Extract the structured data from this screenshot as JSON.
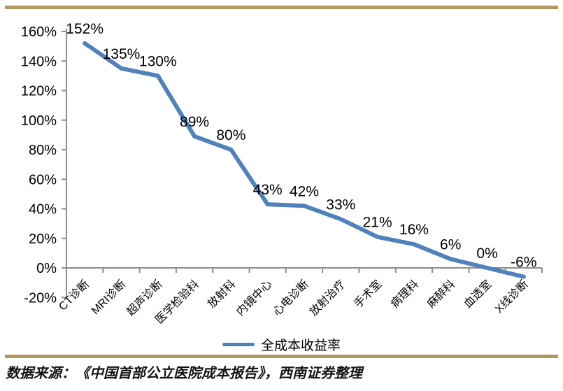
{
  "chart_data": {
    "type": "line",
    "title": "",
    "categories": [
      "CT诊断",
      "MRI诊断",
      "超声诊断",
      "医学检验科",
      "放射科",
      "内镜中心",
      "心电诊断",
      "放射治疗",
      "手术室",
      "病理科",
      "麻醉科",
      "血透室",
      "X线诊断"
    ],
    "series": [
      {
        "name": "全成本收益率",
        "values": [
          152,
          135,
          130,
          89,
          80,
          43,
          42,
          33,
          21,
          16,
          6,
          0,
          -6
        ]
      }
    ],
    "data_labels": [
      "152%",
      "135%",
      "130%",
      "89%",
      "80%",
      "43%",
      "42%",
      "33%",
      "21%",
      "16%",
      "6%",
      "0%",
      "-6%"
    ],
    "y_tick_labels": [
      "160%",
      "140%",
      "120%",
      "100%",
      "80%",
      "60%",
      "40%",
      "20%",
      "0%",
      "-20%"
    ],
    "ylim": [
      -20,
      160
    ],
    "ytick_step": 20,
    "unit": "%",
    "grid": false,
    "legend_position": "bottom",
    "xlabel": "",
    "ylabel": ""
  },
  "legend": {
    "series_label": "全成本收益率"
  },
  "footer": {
    "source_note": "数据来源：《中国首部公立医院成本报告》，西南证券整理"
  },
  "colors": {
    "border_accent": "#b4975a",
    "line": "#4f81bd",
    "axis": "#8c8c8c",
    "text": "#000000",
    "background": "#ffffff"
  }
}
